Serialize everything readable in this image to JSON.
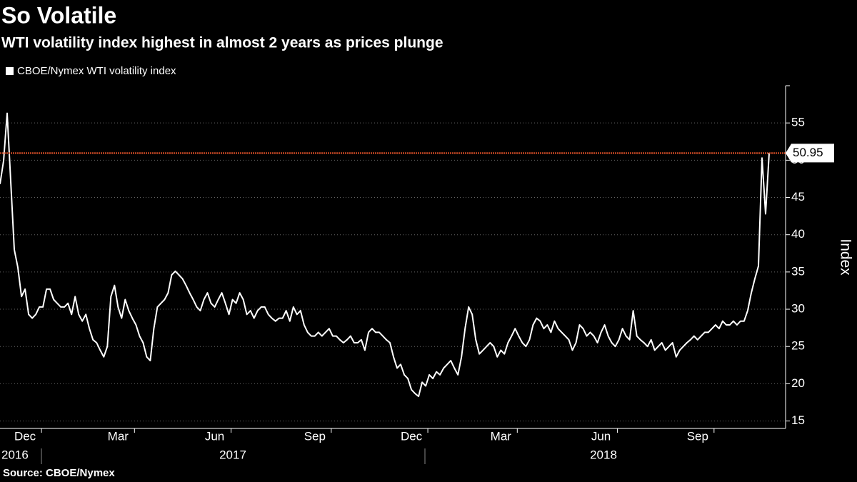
{
  "chart_data": {
    "type": "line",
    "title": "So Volatile",
    "subtitle": "WTI volatility index highest in almost 2 years as prices plunge",
    "source": "Source: CBOE/Nymex",
    "y_axis_label": "Index",
    "year_labels": [
      "2016",
      "2017",
      "2018"
    ],
    "ylim": [
      14,
      60
    ],
    "yticks": [
      15,
      20,
      25,
      30,
      35,
      40,
      45,
      50,
      55
    ],
    "grid": true,
    "legend": "top-left",
    "reference_color": "#e8542a",
    "categories": [
      null,
      null,
      null,
      null,
      null,
      null,
      null,
      "Dec",
      null,
      null,
      null,
      null,
      null,
      null,
      null,
      null,
      null,
      null,
      null,
      null,
      null,
      null,
      null,
      null,
      null,
      null,
      null,
      null,
      null,
      null,
      null,
      null,
      null,
      "Mar",
      null,
      null,
      null,
      null,
      null,
      null,
      null,
      null,
      null,
      null,
      null,
      null,
      null,
      null,
      null,
      null,
      null,
      null,
      null,
      null,
      null,
      null,
      null,
      null,
      null,
      null,
      "Jun",
      null,
      null,
      null,
      null,
      null,
      null,
      null,
      null,
      null,
      null,
      null,
      null,
      null,
      null,
      null,
      null,
      null,
      null,
      null,
      null,
      null,
      null,
      null,
      null,
      null,
      null,
      null,
      "Sep",
      null,
      null,
      null,
      null,
      null,
      null,
      null,
      null,
      null,
      null,
      null,
      null,
      null,
      null,
      null,
      null,
      null,
      null,
      null,
      null,
      null,
      null,
      null,
      null,
      null,
      null,
      "Dec",
      null,
      null,
      null,
      null,
      null,
      null,
      null,
      null,
      null,
      null,
      null,
      null,
      null,
      null,
      null,
      null,
      null,
      null,
      null,
      null,
      null,
      null,
      null,
      null,
      "Mar",
      null,
      null,
      null,
      null,
      null,
      null,
      null,
      null,
      null,
      null,
      null,
      null,
      null,
      null,
      null,
      null,
      null,
      null,
      null,
      null,
      null,
      null,
      null,
      null,
      null,
      null,
      null,
      "Jun",
      null,
      null,
      null,
      null,
      null,
      null,
      null,
      null,
      null,
      null,
      null,
      null,
      null,
      null,
      null,
      null,
      null,
      null,
      null,
      null,
      null,
      null,
      null,
      null,
      null,
      null,
      "Sep",
      null,
      null,
      null,
      null,
      null,
      null,
      null,
      null,
      null,
      null,
      null,
      null,
      null,
      null,
      null,
      null,
      null,
      null,
      null,
      null
    ],
    "series": [
      {
        "name": "CBOE/Nymex WTI volatility index",
        "color": "#ffffff",
        "values": [
          46.8,
          49.9,
          56.3,
          47.2,
          38.0,
          35.6,
          31.7,
          32.7,
          29.3,
          28.8,
          29.3,
          30.3,
          30.3,
          32.7,
          32.7,
          31.3,
          30.8,
          30.3,
          30.3,
          30.8,
          29.3,
          31.7,
          29.3,
          28.4,
          29.3,
          27.4,
          25.9,
          25.5,
          24.5,
          23.6,
          25.0,
          31.7,
          33.2,
          30.3,
          28.8,
          31.3,
          29.8,
          28.8,
          27.9,
          26.4,
          25.5,
          23.6,
          23.1,
          27.4,
          30.3,
          30.8,
          31.3,
          32.2,
          34.6,
          35.1,
          34.6,
          34.1,
          33.2,
          32.2,
          31.3,
          30.3,
          29.8,
          31.3,
          32.2,
          30.8,
          30.3,
          31.3,
          32.2,
          30.8,
          29.3,
          31.3,
          30.8,
          32.2,
          31.3,
          29.3,
          29.8,
          28.8,
          29.8,
          30.3,
          30.3,
          29.3,
          28.8,
          28.4,
          28.8,
          28.8,
          29.8,
          28.4,
          30.3,
          29.3,
          29.8,
          27.9,
          26.9,
          26.4,
          26.4,
          26.9,
          26.4,
          26.9,
          27.4,
          26.4,
          26.4,
          25.9,
          25.5,
          25.9,
          26.4,
          25.5,
          25.5,
          25.9,
          24.5,
          26.9,
          27.4,
          26.9,
          26.9,
          26.4,
          25.9,
          25.5,
          23.6,
          22.1,
          22.6,
          21.2,
          20.7,
          19.2,
          18.7,
          18.3,
          20.2,
          19.7,
          21.2,
          20.7,
          21.6,
          21.2,
          22.1,
          22.6,
          23.1,
          22.1,
          21.2,
          23.6,
          27.4,
          30.3,
          29.3,
          25.9,
          24.0,
          24.5,
          25.0,
          25.5,
          25.0,
          23.6,
          24.5,
          24.0,
          25.5,
          26.4,
          27.4,
          26.4,
          25.5,
          25.0,
          25.9,
          27.9,
          28.8,
          28.4,
          27.4,
          27.9,
          26.9,
          28.4,
          27.4,
          26.9,
          26.4,
          25.9,
          24.5,
          25.5,
          27.9,
          27.4,
          26.4,
          26.9,
          26.4,
          25.5,
          26.9,
          27.9,
          26.4,
          25.5,
          25.0,
          25.9,
          27.4,
          26.4,
          25.9,
          29.8,
          26.4,
          25.9,
          25.5,
          25.0,
          25.9,
          24.5,
          25.0,
          25.5,
          24.5,
          25.0,
          25.5,
          23.6,
          24.5,
          25.0,
          25.5,
          25.9,
          26.4,
          25.9,
          26.4,
          26.9,
          26.9,
          27.4,
          27.9,
          27.4,
          28.4,
          27.9,
          27.9,
          28.4,
          27.9,
          28.4,
          28.4,
          29.8,
          32.2,
          34.1,
          35.8,
          50.3,
          42.8,
          50.95
        ]
      }
    ]
  }
}
